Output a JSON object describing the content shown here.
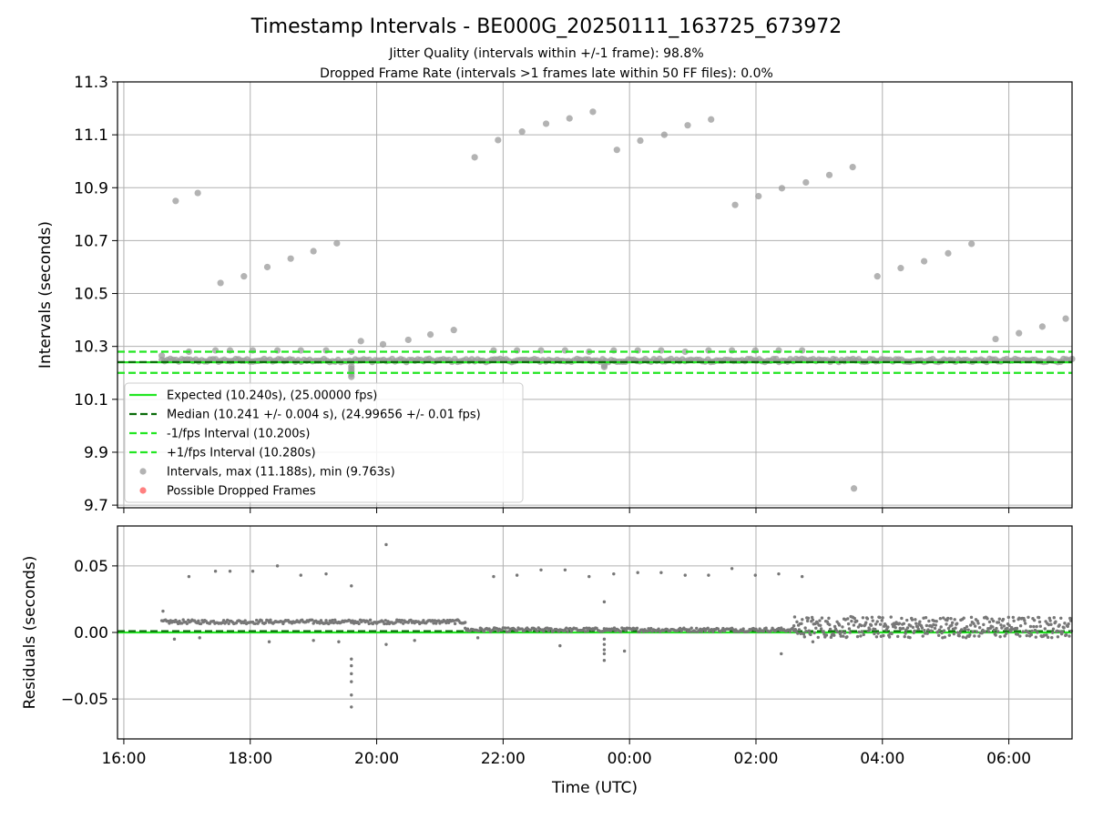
{
  "figure": {
    "title": "Timestamp Intervals - BE000G_20250111_163725_673972",
    "subtitle_line1": "Jitter Quality (intervals within +/-1 frame): 98.8%",
    "subtitle_line2": "Dropped Frame Rate (intervals >1 frames late within 50 FF files): 0.0%",
    "xlabel": "Time (UTC)",
    "colors": {
      "expected": "#22e622",
      "median": "#0a6b0a",
      "bounds": "#22e622",
      "points": "#999999",
      "residual_points": "#777777",
      "dropped": "#ff5555",
      "grid": "#b0b0b0"
    }
  },
  "chart_data": [
    {
      "type": "scatter",
      "panel": "intervals",
      "ylabel": "Intervals (seconds)",
      "x_unit": "hours since 16:00 UTC (axis spans 11 Jan 16:00 to 12 Jan 07:00)",
      "xlim": [
        -0.1,
        15.0
      ],
      "ylim": [
        9.69,
        11.3
      ],
      "x_ticks": [
        0,
        2,
        4,
        6,
        8,
        10,
        12,
        14
      ],
      "x_tick_labels": [
        "16:00",
        "18:00",
        "20:00",
        "22:00",
        "00:00",
        "02:00",
        "04:00",
        "06:00"
      ],
      "y_ticks": [
        9.7,
        9.9,
        10.1,
        10.3,
        10.5,
        10.7,
        10.9,
        11.1,
        11.3
      ],
      "y_tick_labels": [
        "9.7",
        "9.9",
        "10.1",
        "10.3",
        "10.5",
        "10.7",
        "10.9",
        "11.1",
        "11.3"
      ],
      "grid": true,
      "legend_position": "lower-left",
      "lines": {
        "expected": 10.24,
        "median": 10.241,
        "lower_bound": 10.2,
        "upper_bound": 10.28
      },
      "legend": [
        {
          "label": "Expected (10.240s), (25.00000 fps)",
          "style": "solid",
          "color_key": "expected"
        },
        {
          "label": "Median (10.241 +/- 0.004 s), (24.99656 +/- 0.01 fps)",
          "style": "dashed",
          "color_key": "median"
        },
        {
          "label": "-1/fps Interval (10.200s)",
          "style": "dashed",
          "color_key": "bounds"
        },
        {
          "label": "+1/fps Interval (10.280s)",
          "style": "dashed",
          "color_key": "bounds"
        },
        {
          "label": "Intervals, max (11.188s), min (9.763s)",
          "style": "marker",
          "color_key": "points"
        },
        {
          "label": "Possible Dropped Frames",
          "style": "marker",
          "color_key": "dropped"
        }
      ],
      "band": {
        "x_start": 0.6,
        "x_end": 15.0,
        "center": 10.247,
        "spread": 0.006
      },
      "outliers": [
        [
          0.82,
          10.85
        ],
        [
          1.17,
          10.88
        ],
        [
          1.53,
          10.54
        ],
        [
          1.9,
          10.565
        ],
        [
          2.27,
          10.6
        ],
        [
          2.64,
          10.632
        ],
        [
          3.0,
          10.66
        ],
        [
          3.37,
          10.69
        ],
        [
          3.75,
          10.32
        ],
        [
          4.1,
          10.308
        ],
        [
          4.5,
          10.325
        ],
        [
          4.85,
          10.345
        ],
        [
          5.22,
          10.362
        ],
        [
          5.55,
          11.015
        ],
        [
          5.92,
          11.08
        ],
        [
          6.3,
          11.112
        ],
        [
          6.68,
          11.142
        ],
        [
          7.05,
          11.162
        ],
        [
          7.42,
          11.187
        ],
        [
          7.8,
          11.043
        ],
        [
          8.17,
          11.078
        ],
        [
          8.55,
          11.1
        ],
        [
          8.92,
          11.136
        ],
        [
          9.29,
          11.158
        ],
        [
          9.67,
          10.835
        ],
        [
          10.04,
          10.868
        ],
        [
          10.41,
          10.898
        ],
        [
          10.79,
          10.92
        ],
        [
          11.16,
          10.948
        ],
        [
          11.53,
          10.978
        ],
        [
          11.92,
          10.565
        ],
        [
          12.29,
          10.596
        ],
        [
          12.66,
          10.622
        ],
        [
          13.04,
          10.652
        ],
        [
          13.41,
          10.688
        ],
        [
          13.79,
          10.328
        ],
        [
          14.16,
          10.35
        ],
        [
          14.53,
          10.375
        ],
        [
          14.9,
          10.405
        ],
        [
          0.6,
          10.265
        ],
        [
          1.03,
          10.28
        ],
        [
          1.45,
          10.285
        ],
        [
          1.68,
          10.285
        ],
        [
          2.04,
          10.285
        ],
        [
          2.43,
          10.285
        ],
        [
          2.8,
          10.285
        ],
        [
          3.2,
          10.285
        ],
        [
          3.6,
          10.28
        ],
        [
          5.85,
          10.285
        ],
        [
          6.22,
          10.285
        ],
        [
          6.6,
          10.285
        ],
        [
          6.98,
          10.285
        ],
        [
          7.36,
          10.28
        ],
        [
          7.75,
          10.285
        ],
        [
          8.13,
          10.285
        ],
        [
          8.5,
          10.285
        ],
        [
          8.88,
          10.28
        ],
        [
          9.25,
          10.285
        ],
        [
          9.62,
          10.285
        ],
        [
          9.99,
          10.285
        ],
        [
          10.36,
          10.285
        ],
        [
          10.73,
          10.285
        ],
        [
          3.6,
          10.225
        ],
        [
          3.6,
          10.215
        ],
        [
          3.6,
          10.205
        ],
        [
          3.6,
          10.195
        ],
        [
          3.6,
          10.185
        ],
        [
          7.6,
          10.228
        ],
        [
          7.6,
          10.222
        ],
        [
          11.55,
          9.763
        ]
      ]
    },
    {
      "type": "scatter",
      "panel": "residuals",
      "ylabel": "Residuals (seconds)",
      "xlim": [
        -0.1,
        15.0
      ],
      "ylim": [
        -0.08,
        0.08
      ],
      "y_ticks": [
        -0.05,
        0.0,
        0.05
      ],
      "y_tick_labels": [
        "−0.05",
        "0.00",
        "0.05"
      ],
      "x_ticks": [
        0,
        2,
        4,
        6,
        8,
        10,
        12,
        14
      ],
      "x_tick_labels": [
        "16:00",
        "18:00",
        "20:00",
        "22:00",
        "00:00",
        "02:00",
        "04:00",
        "06:00"
      ],
      "grid": true,
      "expected_line": 0.0,
      "median_line": 0.001,
      "segments": [
        {
          "x_start": 0.6,
          "x_end": 3.6,
          "y": 0.008,
          "spread": 0.0015
        },
        {
          "x_start": 3.6,
          "x_end": 5.4,
          "y": 0.008,
          "spread": 0.0015
        },
        {
          "x_start": 5.4,
          "x_end": 10.6,
          "y": 0.002,
          "spread": 0.0015
        },
        {
          "x_start": 10.6,
          "x_end": 15.0,
          "y": 0.004,
          "spread": 0.008
        }
      ],
      "outliers": [
        [
          0.62,
          0.016
        ],
        [
          1.03,
          0.042
        ],
        [
          1.45,
          0.046
        ],
        [
          1.68,
          0.046
        ],
        [
          2.04,
          0.046
        ],
        [
          2.43,
          0.05
        ],
        [
          2.8,
          0.043
        ],
        [
          3.2,
          0.044
        ],
        [
          3.6,
          0.035
        ],
        [
          4.15,
          0.066
        ],
        [
          5.85,
          0.042
        ],
        [
          6.22,
          0.043
        ],
        [
          6.6,
          0.047
        ],
        [
          6.98,
          0.047
        ],
        [
          7.36,
          0.042
        ],
        [
          7.75,
          0.044
        ],
        [
          8.13,
          0.045
        ],
        [
          8.5,
          0.045
        ],
        [
          8.88,
          0.043
        ],
        [
          9.25,
          0.043
        ],
        [
          9.62,
          0.048
        ],
        [
          9.99,
          0.043
        ],
        [
          10.36,
          0.044
        ],
        [
          10.73,
          0.042
        ],
        [
          0.8,
          -0.005
        ],
        [
          1.2,
          -0.004
        ],
        [
          2.3,
          -0.007
        ],
        [
          3.0,
          -0.006
        ],
        [
          3.4,
          -0.007
        ],
        [
          4.15,
          -0.009
        ],
        [
          4.6,
          -0.006
        ],
        [
          5.6,
          -0.004
        ],
        [
          6.9,
          -0.01
        ],
        [
          7.92,
          -0.014
        ],
        [
          10.4,
          -0.016
        ],
        [
          10.9,
          -0.007
        ],
        [
          3.6,
          -0.02
        ],
        [
          3.6,
          -0.025
        ],
        [
          3.6,
          -0.031
        ],
        [
          3.6,
          -0.037
        ],
        [
          3.6,
          -0.047
        ],
        [
          3.6,
          -0.056
        ],
        [
          7.6,
          0.023
        ],
        [
          7.6,
          -0.005
        ],
        [
          7.6,
          -0.009
        ],
        [
          7.6,
          -0.013
        ],
        [
          7.6,
          -0.016
        ],
        [
          7.6,
          -0.021
        ]
      ]
    }
  ]
}
